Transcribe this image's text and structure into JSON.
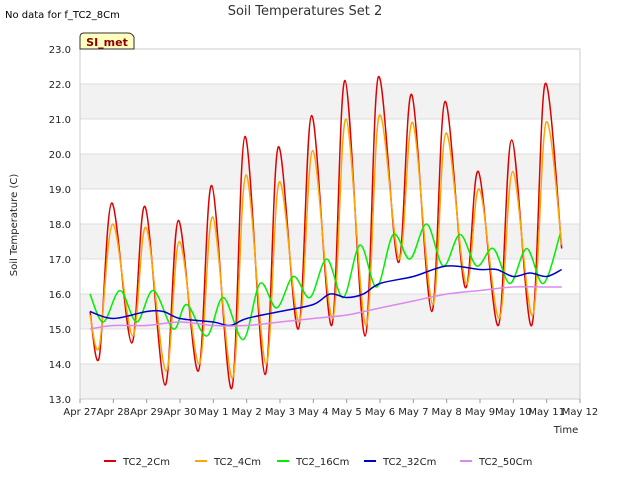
{
  "page": {
    "no_data_note": "No data for f_TC2_8Cm",
    "badge": "SI_met"
  },
  "chart_data": {
    "type": "line",
    "title": "Soil Temperatures Set 2",
    "xlabel": "Time",
    "ylabel": "Soil Temperature (C)",
    "x_ticks": [
      "Apr 27",
      "Apr 28",
      "Apr 29",
      "Apr 30",
      "May 1",
      "May 2",
      "May 3",
      "May 4",
      "May 5",
      "May 6",
      "May 7",
      "May 8",
      "May 9",
      "May 10",
      "May 11",
      "May 12"
    ],
    "xlim": [
      0,
      15
    ],
    "ylim": [
      13.0,
      23.0
    ],
    "y_ticks": [
      "13.0",
      "14.0",
      "15.0",
      "16.0",
      "17.0",
      "18.0",
      "19.0",
      "20.0",
      "21.0",
      "22.0",
      "23.0"
    ],
    "grid": true,
    "legend_position": "bottom",
    "series": [
      {
        "name": "TC2_2Cm",
        "color": "#dd0000",
        "x": [
          0.3,
          0.58,
          0.95,
          1.55,
          1.95,
          2.55,
          2.95,
          3.55,
          3.95,
          4.55,
          4.95,
          5.55,
          5.95,
          6.55,
          6.95,
          7.55,
          7.95,
          8.55,
          8.95,
          9.55,
          9.95,
          10.55,
          10.95,
          11.55,
          11.95,
          12.55,
          12.95,
          13.55,
          13.95,
          14.45
        ],
        "y": [
          15.5,
          14.2,
          18.6,
          14.6,
          18.5,
          13.4,
          18.1,
          13.8,
          19.1,
          13.3,
          20.5,
          13.7,
          20.2,
          15.0,
          21.1,
          15.1,
          22.1,
          14.8,
          22.2,
          16.9,
          21.7,
          15.5,
          21.5,
          16.2,
          19.5,
          15.1,
          20.4,
          15.1,
          22.0,
          17.3
        ]
      },
      {
        "name": "TC2_4Cm",
        "color": "#ffa500",
        "x": [
          0.3,
          0.58,
          0.98,
          1.58,
          1.98,
          2.58,
          2.98,
          3.58,
          3.98,
          4.58,
          4.98,
          5.58,
          5.98,
          6.58,
          6.98,
          7.58,
          7.98,
          8.58,
          8.98,
          9.58,
          9.98,
          10.58,
          10.98,
          11.58,
          11.98,
          12.58,
          12.98,
          13.58,
          13.98,
          14.45
        ],
        "y": [
          15.4,
          14.5,
          18.0,
          14.8,
          17.9,
          13.8,
          17.5,
          14.0,
          18.2,
          13.6,
          19.4,
          14.0,
          19.2,
          15.2,
          20.1,
          15.3,
          21.0,
          15.1,
          21.1,
          17.0,
          20.9,
          15.7,
          20.6,
          16.3,
          19.0,
          15.3,
          19.5,
          15.4,
          20.9,
          17.4
        ]
      },
      {
        "name": "TC2_16Cm",
        "color": "#00ee00",
        "x": [
          0.3,
          0.7,
          1.2,
          1.7,
          2.2,
          2.8,
          3.2,
          3.8,
          4.3,
          4.9,
          5.4,
          5.9,
          6.4,
          6.9,
          7.4,
          7.9,
          8.4,
          8.9,
          9.4,
          9.9,
          10.4,
          10.9,
          11.4,
          11.9,
          12.4,
          12.9,
          13.4,
          13.9,
          14.4
        ],
        "y": [
          16.0,
          15.2,
          16.1,
          15.2,
          16.1,
          15.0,
          15.7,
          14.8,
          15.9,
          14.7,
          16.3,
          15.6,
          16.5,
          15.9,
          17.0,
          15.9,
          17.4,
          16.2,
          17.7,
          17.0,
          18.0,
          16.8,
          17.7,
          16.8,
          17.3,
          16.3,
          17.3,
          16.3,
          17.7
        ]
      },
      {
        "name": "TC2_32Cm",
        "color": "#0000cc",
        "x": [
          0.3,
          1.0,
          2.0,
          2.5,
          3.0,
          4.0,
          4.5,
          5.0,
          6.0,
          7.0,
          7.5,
          8.0,
          8.5,
          9.0,
          10.0,
          11.0,
          12.0,
          12.5,
          13.0,
          13.5,
          14.0,
          14.45
        ],
        "y": [
          15.5,
          15.3,
          15.5,
          15.5,
          15.3,
          15.2,
          15.1,
          15.3,
          15.5,
          15.7,
          16.0,
          15.9,
          16.0,
          16.3,
          16.5,
          16.8,
          16.7,
          16.7,
          16.5,
          16.6,
          16.5,
          16.7
        ]
      },
      {
        "name": "TC2_50Cm",
        "color": "#dd88ee",
        "x": [
          0.3,
          1.0,
          2.0,
          3.0,
          4.0,
          5.0,
          6.0,
          7.0,
          8.0,
          9.0,
          10.0,
          11.0,
          12.0,
          13.0,
          14.0,
          14.45
        ],
        "y": [
          15.0,
          15.1,
          15.1,
          15.2,
          15.1,
          15.1,
          15.2,
          15.3,
          15.4,
          15.6,
          15.8,
          16.0,
          16.1,
          16.2,
          16.2,
          16.2
        ]
      }
    ]
  }
}
